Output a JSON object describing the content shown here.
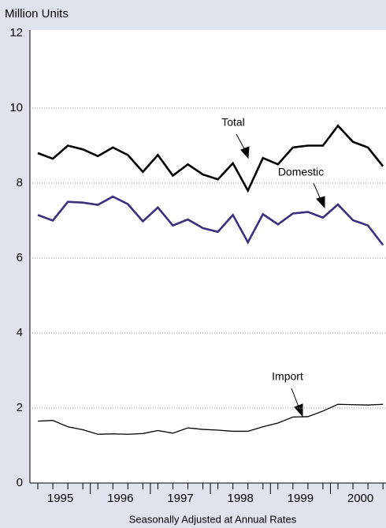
{
  "chart_data": {
    "type": "line",
    "y_label": "Million Units",
    "x_label": "Seasonally Adjusted at Annual Rates",
    "categories": [
      "1995",
      null,
      null,
      null,
      "1996",
      null,
      null,
      null,
      "1997",
      null,
      null,
      null,
      "1998",
      null,
      null,
      null,
      "1999",
      null,
      null,
      null,
      "2000",
      null,
      null,
      null
    ],
    "series": [
      {
        "name": "Total",
        "color": "#000000",
        "values": [
          8.8,
          8.65,
          9.0,
          8.9,
          8.72,
          8.95,
          8.75,
          8.3,
          8.75,
          8.2,
          8.5,
          8.23,
          8.1,
          8.53,
          7.8,
          8.67,
          8.5,
          8.95,
          9.0,
          9.0,
          9.53,
          9.1,
          8.95,
          8.45
        ]
      },
      {
        "name": "Domestic",
        "color": "#3b3080",
        "values": [
          7.15,
          7.0,
          7.5,
          7.48,
          7.42,
          7.64,
          7.44,
          6.98,
          7.35,
          6.87,
          7.03,
          6.8,
          6.7,
          7.15,
          6.42,
          7.17,
          6.9,
          7.19,
          7.23,
          7.08,
          7.43,
          7.01,
          6.87,
          6.35
        ]
      },
      {
        "name": "Import",
        "color": "#000000",
        "values": [
          1.65,
          1.67,
          1.5,
          1.42,
          1.3,
          1.31,
          1.3,
          1.32,
          1.4,
          1.33,
          1.47,
          1.43,
          1.41,
          1.38,
          1.38,
          1.5,
          1.6,
          1.76,
          1.77,
          1.92,
          2.1,
          2.09,
          2.08,
          2.1
        ]
      }
    ],
    "ylim": [
      0,
      12
    ],
    "yticks": [
      0,
      2,
      4,
      6,
      8,
      10,
      12
    ],
    "grid": true
  }
}
